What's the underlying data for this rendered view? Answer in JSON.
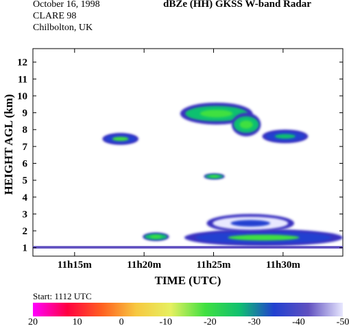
{
  "header": {
    "date": "October 16, 1998",
    "campaign": "CLARE 98",
    "location": "Chilbolton, UK",
    "title": "dBZe (HH)   GKSS  W-band Radar"
  },
  "start_label": "Start: 1112 UTC",
  "chart_data": {
    "type": "heatmap",
    "title": "dBZe (HH)   GKSS  W-band Radar",
    "xlabel": "TIME (UTC)",
    "ylabel": "HEIGHT AGL (km)",
    "x_ticks": [
      "11h15m",
      "11h20m",
      "11h25m",
      "11h30m"
    ],
    "x_tick_minutes": [
      15,
      20,
      25,
      30
    ],
    "xlim_minutes": [
      12.0,
      34.3
    ],
    "y_ticks": [
      1,
      2,
      3,
      4,
      5,
      6,
      7,
      8,
      9,
      10,
      11,
      12
    ],
    "ylim": [
      0.5,
      12.8
    ],
    "colorbar": {
      "ticks": [
        "20",
        "10",
        "0",
        "-10",
        "-20",
        "-30",
        "-40",
        "-50"
      ],
      "range": [
        20,
        -50
      ],
      "stops": [
        "#ff00ff",
        "#ff0040",
        "#ff6020",
        "#f7c840",
        "#e6f060",
        "#40e040",
        "#10c070",
        "#2040d0",
        "#6050c0",
        "#e8e8ff"
      ]
    },
    "features": [
      {
        "t_start": 12.0,
        "t_end": 34.3,
        "h_bottom": 0.95,
        "h_top": 1.1,
        "dbz": -45
      },
      {
        "t_start": 19.9,
        "t_end": 21.8,
        "h_bottom": 1.4,
        "h_top": 1.9,
        "dbz": -28
      },
      {
        "t_start": 22.9,
        "t_end": 34.3,
        "h_bottom": 1.1,
        "h_top": 2.1,
        "dbz": -32
      },
      {
        "t_start": 24.5,
        "t_end": 30.8,
        "h_bottom": 1.9,
        "h_top": 3.0,
        "dbz": -48
      },
      {
        "t_start": 17.0,
        "t_end": 19.6,
        "h_bottom": 7.1,
        "h_top": 7.8,
        "dbz": -32
      },
      {
        "t_start": 22.6,
        "t_end": 27.8,
        "h_bottom": 8.3,
        "h_top": 9.6,
        "dbz": -27
      },
      {
        "t_start": 26.3,
        "t_end": 28.4,
        "h_bottom": 7.6,
        "h_top": 9.0,
        "dbz": -29
      },
      {
        "t_start": 28.5,
        "t_end": 31.8,
        "h_bottom": 7.2,
        "h_top": 8.0,
        "dbz": -36
      },
      {
        "t_start": 24.3,
        "t_end": 25.8,
        "h_bottom": 5.05,
        "h_top": 5.4,
        "dbz": -30
      }
    ]
  }
}
